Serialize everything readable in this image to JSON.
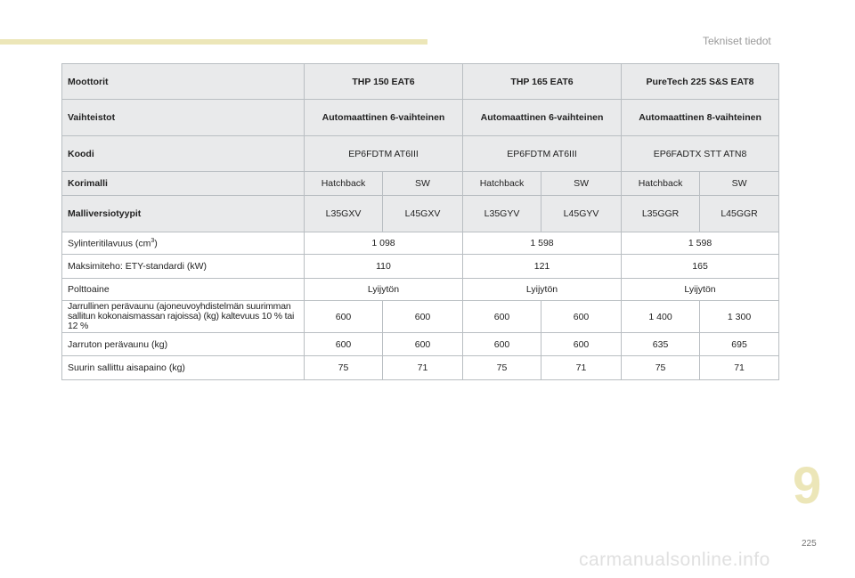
{
  "header": {
    "section_title": "Tekniset tiedot"
  },
  "table": {
    "engines_label": "Moottorit",
    "engines": [
      "THP 150 EAT6",
      "THP 165 EAT6",
      "PureTech 225 S&S EAT8"
    ],
    "gearbox_label": "Vaihteistot",
    "gearboxes": [
      "Automaattinen 6-vaihteinen",
      "Automaattinen 6-vaihteinen",
      "Automaattinen 8-vaihteinen"
    ],
    "code_label": "Koodi",
    "codes": [
      "EP6FDTM AT6III",
      "EP6FDTM AT6III",
      "EP6FADTX STT ATN8"
    ],
    "body_label": "Korimalli",
    "bodies": [
      "Hatchback",
      "SW",
      "Hatchback",
      "SW",
      "Hatchback",
      "SW"
    ],
    "version_label": "Malliversiotyypit",
    "versions": [
      "L35GXV",
      "L45GXV",
      "L35GYV",
      "L45GYV",
      "L35GGR",
      "L45GGR"
    ],
    "displacement_label": "Sylinteritilavuus (cm",
    "displacement_sup": "3",
    "displacement_close": ")",
    "displacements": [
      "1 098",
      "1 598",
      "1 598"
    ],
    "power_label": "Maksimiteho: ETY-standardi (kW)",
    "powers": [
      "110",
      "121",
      "165"
    ],
    "fuel_label": "Polttoaine",
    "fuels": [
      "Lyijytön",
      "Lyijytön",
      "Lyijytön"
    ],
    "braked_label_1": "Jarrullinen perävaunu (ajoneuvoyhdistelmän suurimman",
    "braked_label_2": "sallitun kokonaismassan rajoissa) (kg) kaltevuus 10 % tai 12 %",
    "braked": [
      "600",
      "600",
      "600",
      "600",
      "1 400",
      "1 300"
    ],
    "unbraked_label": "Jarruton perävaunu (kg)",
    "unbraked": [
      "600",
      "600",
      "600",
      "600",
      "635",
      "695"
    ],
    "noseweight_label": "Suurin sallittu aisapaino (kg)",
    "noseweights": [
      "75",
      "71",
      "75",
      "71",
      "75",
      "71"
    ]
  },
  "footer": {
    "chapter": "9",
    "page": "225",
    "watermark": "carmanualsonline.info"
  },
  "colors": {
    "accent": "#ece6b8",
    "header_bg": "#e9eaeb",
    "border": "#b9bec2"
  }
}
